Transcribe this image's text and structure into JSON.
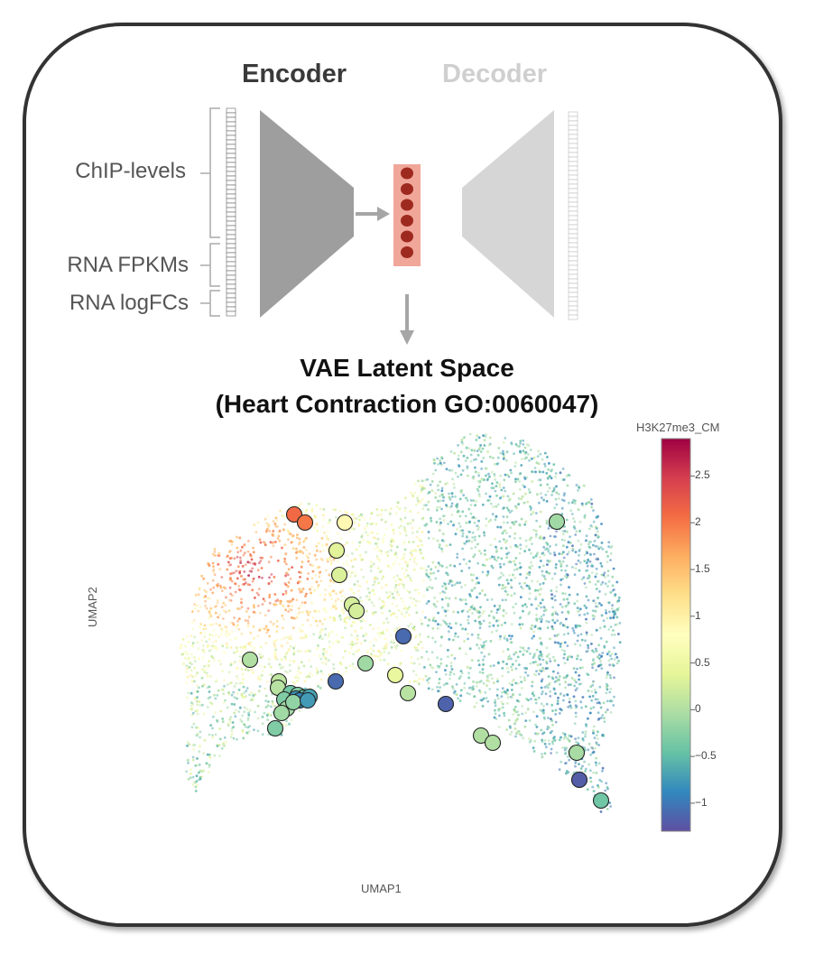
{
  "diagram": {
    "encoder_label": "Encoder",
    "decoder_label": "Decoder",
    "inputs": [
      {
        "label": "ChIP-levels"
      },
      {
        "label": "RNA FPKMs"
      },
      {
        "label": "RNA logFCs"
      }
    ],
    "latent_title_line1": "VAE Latent Space",
    "latent_title_line2": "(Heart Contraction GO:0060047)",
    "latent_units": 6,
    "colors": {
      "encoder": "#9e9e9e",
      "decoder": "#d6d6d6",
      "latent_box": "#f0a79a",
      "latent_node": "#9e2a1f",
      "arrow": "#a6a6a6"
    }
  },
  "plot": {
    "xlabel": "UMAP1",
    "ylabel": "UMAP2",
    "colorbar": {
      "title": "H3K27me3_CM",
      "ticks": [
        "2.5",
        "2",
        "1.5",
        "1",
        "0.5",
        "0",
        "−0.5",
        "−1"
      ],
      "colormap": "Spectral_r",
      "range": [
        -1.3,
        2.9
      ]
    },
    "background": "dense scatter of genes colored by H3K27me3_CM",
    "highlighted_points_count": 35
  }
}
